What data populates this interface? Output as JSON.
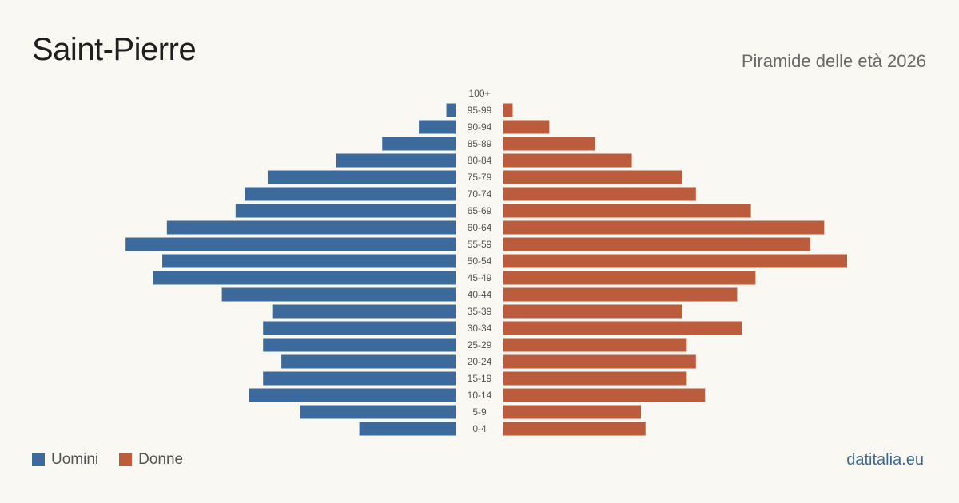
{
  "header": {
    "title": "Saint-Pierre",
    "subtitle": "Piramide delle età 2026"
  },
  "legend": {
    "men_label": "Uomini",
    "women_label": "Donne"
  },
  "footer": {
    "site": "datitalia.eu"
  },
  "colors": {
    "men": "#3c6a9c",
    "women": "#bb5c3c",
    "background": "#faf8f3"
  },
  "chart_data": {
    "type": "bar",
    "orientation": "horizontal-pyramid",
    "title": "Saint-Pierre",
    "subtitle": "Piramide delle età 2026",
    "categories": [
      "100+",
      "95-99",
      "90-94",
      "85-89",
      "80-84",
      "75-79",
      "70-74",
      "65-69",
      "60-64",
      "55-59",
      "50-54",
      "45-49",
      "40-44",
      "35-39",
      "30-34",
      "25-29",
      "20-24",
      "15-19",
      "10-14",
      "5-9",
      "0-4"
    ],
    "series": [
      {
        "name": "Uomini",
        "values": [
          0,
          2,
          8,
          16,
          26,
          41,
          46,
          48,
          63,
          72,
          64,
          66,
          51,
          40,
          42,
          42,
          38,
          42,
          45,
          34,
          21
        ]
      },
      {
        "name": "Donne",
        "values": [
          0,
          2,
          10,
          20,
          28,
          39,
          42,
          54,
          70,
          67,
          75,
          55,
          51,
          39,
          52,
          40,
          42,
          40,
          44,
          30,
          31
        ]
      }
    ],
    "grid": false,
    "legend": "bottom-left"
  }
}
